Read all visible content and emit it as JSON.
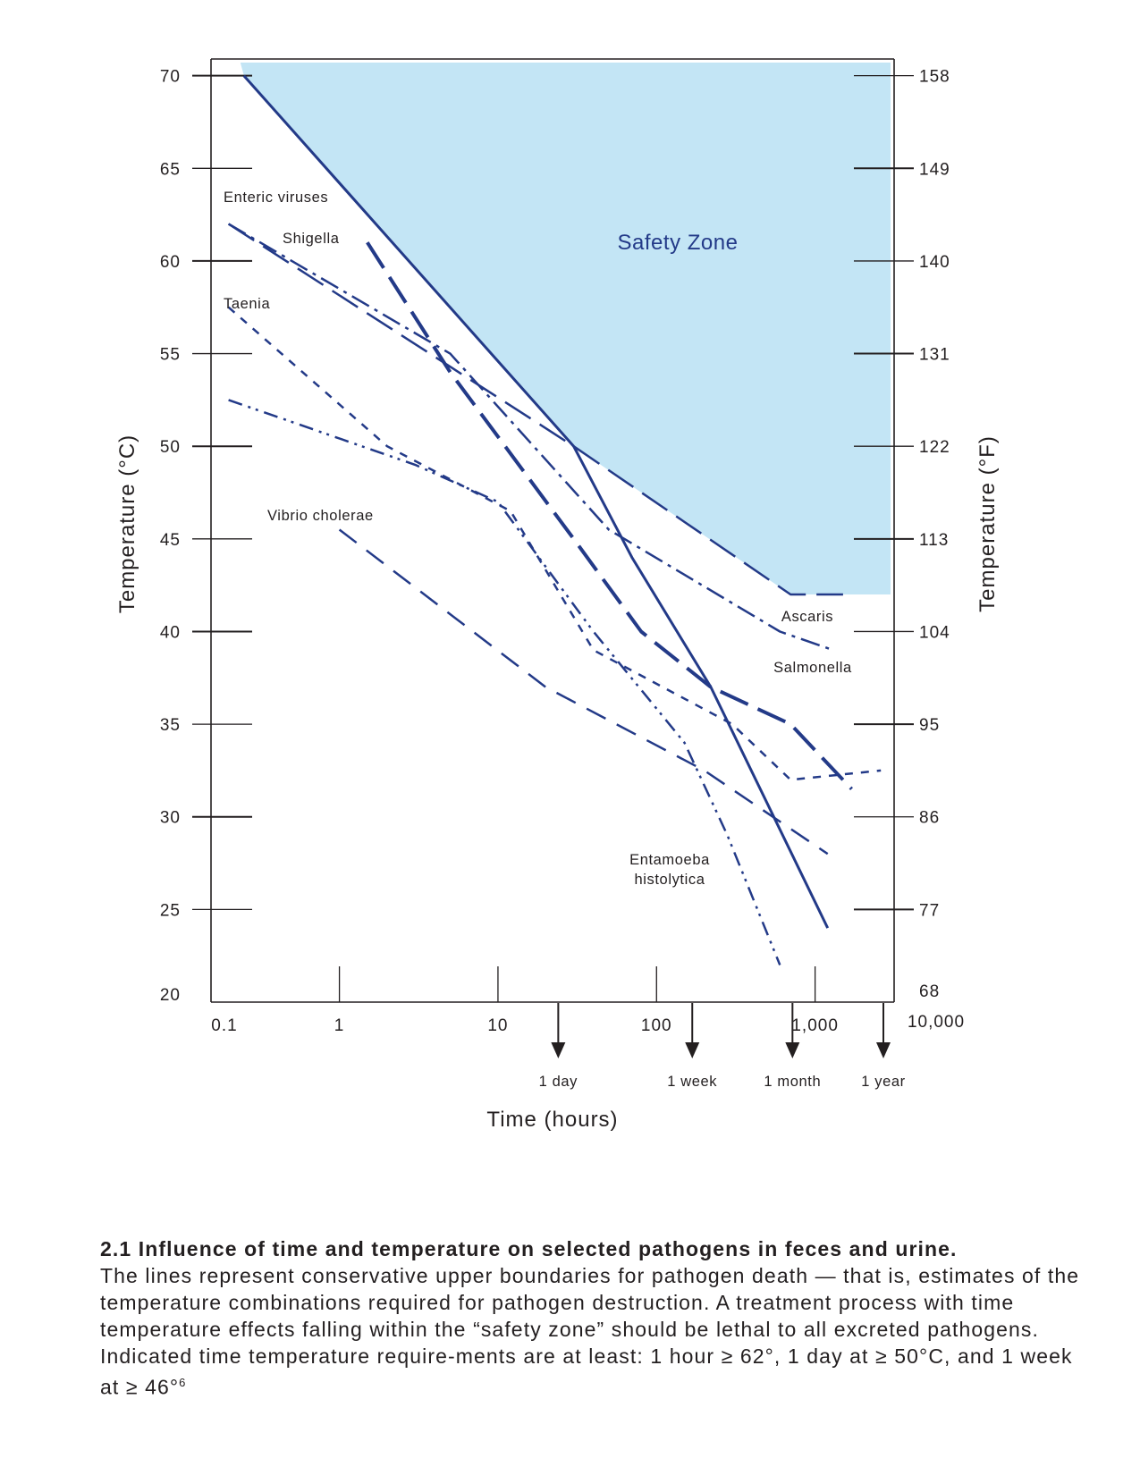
{
  "chart_data": {
    "type": "line",
    "x_scale": "log",
    "xlabel": "Time (hours)",
    "ylabel_left": "Temperature (°C)",
    "ylabel_right": "Temperature (°F)",
    "xlim": [
      0.1,
      10000
    ],
    "ylim": [
      20,
      70
    ],
    "x_tick_labels": [
      "0.1",
      "1",
      "10",
      "100",
      "1,000",
      "10,000"
    ],
    "y_ticks_left": [
      20,
      25,
      30,
      35,
      40,
      45,
      50,
      55,
      60,
      65,
      70
    ],
    "y_ticks_right": [
      {
        "label": "68",
        "celsius": 20
      },
      {
        "label": "77",
        "celsius": 25
      },
      {
        "label": "86",
        "celsius": 30
      },
      {
        "label": "95",
        "celsius": 35
      },
      {
        "label": "104",
        "celsius": 40
      },
      {
        "label": "113",
        "celsius": 45
      },
      {
        "label": "122",
        "celsius": 50
      },
      {
        "label": "131",
        "celsius": 55
      },
      {
        "label": "140",
        "celsius": 60
      },
      {
        "label": "149",
        "celsius": 65
      },
      {
        "label": "158",
        "celsius": 70
      }
    ],
    "time_markers": [
      {
        "label": "1 day",
        "hours": 24
      },
      {
        "label": "1 week",
        "hours": 168
      },
      {
        "label": "1 month",
        "hours": 720
      },
      {
        "label": "1 year",
        "hours": 8760
      }
    ],
    "safety_zone": {
      "label": "Safety Zone",
      "color": "#c3e5f5",
      "boundary": [
        [
          0.25,
          70
        ],
        [
          30,
          50
        ],
        [
          700,
          42
        ],
        [
          6000,
          42
        ]
      ]
    },
    "series": [
      {
        "name": "Enteric viruses",
        "dash": "solid",
        "width": 3,
        "x": [
          0.25,
          30,
          70,
          220,
          1200
        ],
        "y": [
          70,
          50,
          44,
          37,
          24
        ]
      },
      {
        "name": "Shigella",
        "dash": "longdash",
        "width": 4,
        "x": [
          1.5,
          5,
          30,
          80,
          220,
          700,
          1700
        ],
        "y": [
          61,
          54,
          45,
          40,
          37,
          35,
          31.5
        ]
      },
      {
        "name": "Ascaris",
        "dash": "longdash",
        "width": 2.5,
        "x": [
          0.2,
          30,
          700,
          1500
        ],
        "y": [
          62,
          50,
          42,
          42
        ]
      },
      {
        "name": "Salmonella",
        "dash": "dashdot",
        "width": 2.5,
        "x": [
          0.2,
          5,
          50,
          600,
          1300
        ],
        "y": [
          62,
          55,
          45.5,
          40,
          39
        ]
      },
      {
        "name": "Taenia",
        "dash": "shortdash",
        "width": 2.5,
        "x": [
          0.2,
          2,
          12,
          40,
          300,
          700,
          2600
        ],
        "y": [
          57.5,
          50,
          46.5,
          39,
          35,
          32,
          32.5
        ]
      },
      {
        "name": "Vibrio cholerae",
        "dash": "dash",
        "width": 2.5,
        "x": [
          1,
          20,
          200,
          1200
        ],
        "y": [
          45.5,
          37,
          32.5,
          28
        ]
      },
      {
        "name": "Entamoeba histolytica",
        "dash": "dashdotdot",
        "width": 2.5,
        "x": [
          0.2,
          3,
          10,
          40,
          150,
          280,
          600
        ],
        "y": [
          52.5,
          49,
          47,
          40,
          34,
          29,
          22
        ]
      }
    ],
    "series_labels": [
      {
        "text": "Enteric viruses"
      },
      {
        "text": "Shigella"
      },
      {
        "text": "Taenia"
      },
      {
        "text": "Vibrio cholerae"
      },
      {
        "text": "Ascaris"
      },
      {
        "text": "Salmonella"
      },
      {
        "text": "Entamoeba"
      },
      {
        "text": "histolytica"
      }
    ],
    "line_color": "#233a88"
  },
  "caption": {
    "title": "2.1 Influence of time and temperature on selected pathogens in feces and urine.",
    "body": "The lines represent conservative upper boundaries for pathogen death — that is, estimates of the temperature combinations required for pathogen destruction. A treatment process with time temperature effects falling within the “safety zone” should be lethal to all excreted pathogens. Indicated time temperature require-ments are at least: 1 hour ≥ 62°, 1 day at ≥ 50°C, and 1 week at ≥ 46°",
    "footnote": "6"
  }
}
